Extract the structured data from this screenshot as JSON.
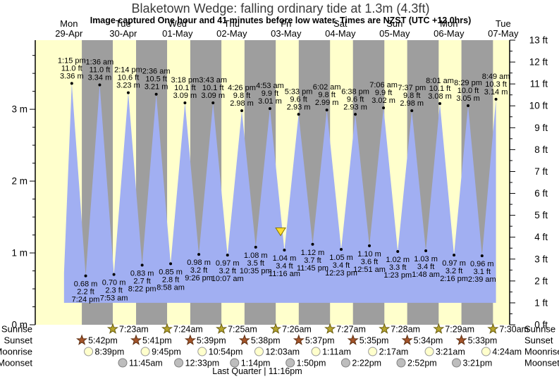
{
  "title": "Blaketown Wedge: falling  ordinary tide at 1.3m (4.3ft)",
  "subtitle": "Image captured One hour and 41 minutes before low water. Times are NZST (UTC +12.0hrs)",
  "colors": {
    "day_band": "#ffffcc",
    "night_band": "#9e9e9e",
    "water": "#a1aff2",
    "date_red": "#ff3333",
    "sunrise_star": "#b5a42c",
    "sunrise_star_edge": "#6b5e10",
    "sunset_star": "#a5552a",
    "sunset_star_edge": "#5e2f12",
    "moonrise_fill": "#ffffcc",
    "moonrise_edge": "#999999",
    "moonset_fill": "#bdbdbd",
    "moonset_edge": "#808080",
    "marker_fill": "#ffdd30",
    "marker_edge": "#8a7a00"
  },
  "chart_data": {
    "type": "area",
    "title": "Blaketown Wedge: falling  ordinary tide at 1.3m (4.3ft)",
    "subtitle": "Image captured One hour and 41 minutes before low water. Times are NZST (UTC +12.0hrs)",
    "x_axis_days": [
      {
        "dow": "Mon",
        "date": "29-Apr"
      },
      {
        "dow": "Tue",
        "date": "30-Apr"
      },
      {
        "dow": "Wed",
        "date": "01-May"
      },
      {
        "dow": "Thu",
        "date": "02-May"
      },
      {
        "dow": "Fri",
        "date": "03-May"
      },
      {
        "dow": "Sat",
        "date": "04-May"
      },
      {
        "dow": "Sun",
        "date": "05-May"
      },
      {
        "dow": "Mon",
        "date": "06-May"
      },
      {
        "dow": "Tue",
        "date": "07-May"
      }
    ],
    "y_axis_left": {
      "unit": "m",
      "ticks": [
        0,
        1,
        2,
        3
      ],
      "range": [
        0,
        3.96
      ]
    },
    "y_axis_right": {
      "unit": "ft",
      "ticks": [
        0,
        1,
        2,
        3,
        4,
        5,
        6,
        7,
        8,
        9,
        10,
        11,
        12,
        13
      ],
      "range": [
        0,
        13
      ]
    },
    "water_baseline_ft": 1,
    "high_tides": [
      {
        "day": 0,
        "time": "1:15 pm",
        "ft": 11.0,
        "m": 3.36
      },
      {
        "day": 1,
        "time": "1:36 am",
        "ft": 11.0,
        "m": 3.34
      },
      {
        "day": 1,
        "time": "2:14 pm",
        "ft": 10.6,
        "m": 3.23
      },
      {
        "day": 2,
        "time": "2:36 am",
        "ft": 10.5,
        "m": 3.21
      },
      {
        "day": 2,
        "time": "3:18 pm",
        "ft": 10.1,
        "m": 3.09
      },
      {
        "day": 3,
        "time": "3:43 am",
        "ft": 10.1,
        "m": 3.09
      },
      {
        "day": 3,
        "time": "4:26 pm",
        "ft": 9.8,
        "m": 2.98
      },
      {
        "day": 4,
        "time": "4:53 am",
        "ft": 9.9,
        "m": 3.01
      },
      {
        "day": 4,
        "time": "5:33 pm",
        "ft": 9.6,
        "m": 2.93
      },
      {
        "day": 5,
        "time": "6:02 am",
        "ft": 9.8,
        "m": 2.99
      },
      {
        "day": 5,
        "time": "6:38 pm",
        "ft": 9.6,
        "m": 2.93
      },
      {
        "day": 6,
        "time": "7:06 am",
        "ft": 9.9,
        "m": 3.02
      },
      {
        "day": 6,
        "time": "7:37 pm",
        "ft": 9.8,
        "m": 2.98
      },
      {
        "day": 7,
        "time": "8:01 am",
        "ft": 10.1,
        "m": 3.08
      },
      {
        "day": 7,
        "time": "8:29 pm",
        "ft": 10.0,
        "m": 3.05
      },
      {
        "day": 8,
        "time": "8:49 am",
        "ft": 10.3,
        "m": 3.14
      }
    ],
    "low_tides": [
      {
        "day": 0,
        "time": "7:24 pm",
        "ft": 2.2,
        "m": 0.68
      },
      {
        "day": 1,
        "time": "7:53 am",
        "ft": 2.3,
        "m": 0.7
      },
      {
        "day": 1,
        "time": "8:22 pm",
        "ft": 2.7,
        "m": 0.83
      },
      {
        "day": 2,
        "time": "8:58 am",
        "ft": 2.8,
        "m": 0.85
      },
      {
        "day": 2,
        "time": "9:26 pm",
        "ft": 3.2,
        "m": 0.98
      },
      {
        "day": 3,
        "time": "10:07 am",
        "ft": 3.2,
        "m": 0.97
      },
      {
        "day": 3,
        "time": "10:35 pm",
        "ft": 3.5,
        "m": 1.08
      },
      {
        "day": 4,
        "time": "11:16 am",
        "ft": 3.4,
        "m": 1.04
      },
      {
        "day": 4,
        "time": "11:45 pm",
        "ft": 3.7,
        "m": 1.12
      },
      {
        "day": 5,
        "time": "12:23 pm",
        "ft": 3.4,
        "m": 1.05
      },
      {
        "day": 6,
        "time": "12:51 am",
        "ft": 3.6,
        "m": 1.1
      },
      {
        "day": 6,
        "time": "1:23 pm",
        "ft": 3.3,
        "m": 1.02
      },
      {
        "day": 7,
        "time": "1:48 am",
        "ft": 3.4,
        "m": 1.03
      },
      {
        "day": 7,
        "time": "2:16 pm",
        "ft": 3.2,
        "m": 0.97
      },
      {
        "day": 8,
        "time": "2:39 am",
        "ft": 3.1,
        "m": 0.96
      }
    ],
    "current_marker": {
      "day": 4,
      "next_low_time": "11:16 am",
      "minutes_before_low": 101,
      "height_m": 1.3
    }
  },
  "astro": {
    "row_labels": [
      "Sunrise",
      "Sunset",
      "Moonrise",
      "Moonset"
    ],
    "sunrise": [
      {
        "day": 1,
        "time": "7:23am"
      },
      {
        "day": 2,
        "time": "7:24am"
      },
      {
        "day": 3,
        "time": "7:25am"
      },
      {
        "day": 4,
        "time": "7:26am"
      },
      {
        "day": 5,
        "time": "7:27am"
      },
      {
        "day": 6,
        "time": "7:28am"
      },
      {
        "day": 7,
        "time": "7:29am"
      },
      {
        "day": 8,
        "time": "7:30am"
      }
    ],
    "sunset": [
      {
        "day": 0,
        "time": "5:42pm"
      },
      {
        "day": 1,
        "time": "5:41pm"
      },
      {
        "day": 2,
        "time": "5:39pm"
      },
      {
        "day": 3,
        "time": "5:38pm"
      },
      {
        "day": 4,
        "time": "5:37pm"
      },
      {
        "day": 5,
        "time": "5:35pm"
      },
      {
        "day": 6,
        "time": "5:34pm"
      },
      {
        "day": 7,
        "time": "5:33pm"
      }
    ],
    "moonrise": [
      {
        "day": 0,
        "time": "8:39pm"
      },
      {
        "day": 1,
        "time": "9:45pm"
      },
      {
        "day": 2,
        "time": "10:54pm"
      },
      {
        "day": 4,
        "time": "12:03am"
      },
      {
        "day": 5,
        "time": "1:11am"
      },
      {
        "day": 6,
        "time": "2:17am"
      },
      {
        "day": 7,
        "time": "3:21am"
      },
      {
        "day": 8,
        "time": "4:24am"
      }
    ],
    "moonset": [
      {
        "day": 1,
        "time": "11:45am"
      },
      {
        "day": 2,
        "time": "12:33pm"
      },
      {
        "day": 3,
        "time": "1:14pm"
      },
      {
        "day": 4,
        "time": "1:50pm"
      },
      {
        "day": 5,
        "time": "2:22pm"
      },
      {
        "day": 6,
        "time": "2:52pm"
      },
      {
        "day": 7,
        "time": "3:21pm"
      }
    ],
    "moon_phase": {
      "label": "Last Quarter | 11:16pm",
      "day": 3,
      "time": "11:16pm"
    }
  }
}
